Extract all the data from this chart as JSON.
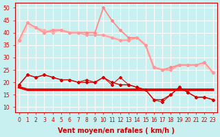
{
  "background_color": "#c8f0f0",
  "grid_color": "#ffffff",
  "xlabel": "Vent moyen/en rafales ( km/h )",
  "xlabel_color": "#cc0000",
  "xlabel_fontsize": 7,
  "xtick_fontsize": 5.5,
  "ytick_fontsize": 5.5,
  "ylim": [
    8,
    52
  ],
  "xlim": [
    -0.5,
    23.5
  ],
  "yticks": [
    10,
    15,
    20,
    25,
    30,
    35,
    40,
    45,
    50
  ],
  "xticks": [
    0,
    1,
    2,
    3,
    4,
    5,
    6,
    7,
    8,
    9,
    10,
    11,
    12,
    13,
    14,
    15,
    16,
    17,
    18,
    19,
    20,
    21,
    22,
    23
  ],
  "tick_color": "#cc0000",
  "series": [
    {
      "x": [
        0,
        1,
        2,
        3,
        4,
        5,
        6,
        7,
        8,
        9,
        10,
        11,
        12,
        13,
        14,
        15,
        16,
        17,
        18,
        19,
        20,
        21,
        22,
        23
      ],
      "y": [
        37,
        44,
        42,
        40,
        41,
        41,
        40,
        40,
        39,
        39,
        39,
        38,
        37,
        37,
        38,
        35,
        26,
        25,
        25,
        27,
        27,
        27,
        28,
        24
      ],
      "color": "#ff9999",
      "lw": 1.0,
      "marker": "D",
      "ms": 2.0,
      "zorder": 3
    },
    {
      "x": [
        0,
        1,
        2,
        3,
        4,
        5,
        6,
        7,
        8,
        9,
        10,
        11,
        12,
        13,
        14,
        15,
        16,
        17,
        18,
        19,
        20,
        21,
        22,
        23
      ],
      "y": [
        37,
        44,
        42,
        41,
        40,
        41,
        40,
        40,
        40,
        40,
        50,
        45,
        41,
        38,
        38,
        35,
        26,
        25,
        26,
        27,
        27,
        27,
        28,
        24
      ],
      "color": "#ffaaaa",
      "lw": 0.8,
      "marker": "D",
      "ms": 2.0,
      "zorder": 2
    },
    {
      "x": [
        0,
        1,
        2,
        3,
        4,
        5,
        6,
        7,
        8,
        9,
        10,
        11,
        12,
        13,
        14,
        15,
        16,
        17,
        18,
        19,
        20,
        21,
        22,
        23
      ],
      "y": [
        37,
        44,
        42,
        40,
        41,
        41,
        40,
        40,
        40,
        40,
        50,
        45,
        41,
        38,
        38,
        35,
        26,
        25,
        26,
        27,
        27,
        27,
        28,
        24
      ],
      "color": "#ff8888",
      "lw": 1.2,
      "marker": "D",
      "ms": 2.0,
      "zorder": 2
    },
    {
      "x": [
        0,
        1,
        2,
        3,
        4,
        5,
        6,
        7,
        8,
        9,
        10,
        11,
        12,
        13,
        14,
        15,
        16,
        17,
        18,
        19,
        20,
        21,
        22,
        23
      ],
      "y": [
        36,
        43,
        42,
        40,
        41,
        41,
        40,
        40,
        40,
        40,
        39,
        38,
        37,
        37,
        38,
        35,
        26,
        25,
        25,
        27,
        27,
        27,
        27,
        24
      ],
      "color": "#ffbbbb",
      "lw": 2.5,
      "marker": null,
      "ms": 0,
      "zorder": 1
    },
    {
      "x": [
        0,
        1,
        2,
        3,
        4,
        5,
        6,
        7,
        8,
        9,
        10,
        11,
        12,
        13,
        14,
        15,
        16,
        17,
        18,
        19,
        20,
        21,
        22,
        23
      ],
      "y": [
        36,
        43,
        42,
        40,
        41,
        41,
        40,
        40,
        40,
        40,
        39,
        38,
        37,
        37,
        38,
        35,
        26,
        25,
        25,
        27,
        27,
        27,
        27,
        24
      ],
      "color": "#ffcccc",
      "lw": 2.0,
      "marker": null,
      "ms": 0,
      "zorder": 1
    },
    {
      "x": [
        0,
        1,
        2,
        3,
        4,
        5,
        6,
        7,
        8,
        9,
        10,
        11,
        12,
        13,
        14,
        15,
        16,
        17,
        18,
        19,
        20,
        21,
        22,
        23
      ],
      "y": [
        19,
        23,
        22,
        23,
        22,
        21,
        21,
        20,
        20,
        20,
        22,
        20,
        19,
        19,
        18,
        17,
        13,
        13,
        15,
        18,
        16,
        14,
        14,
        13
      ],
      "color": "#cc0000",
      "lw": 1.0,
      "marker": "D",
      "ms": 2.0,
      "zorder": 4
    },
    {
      "x": [
        0,
        1,
        2,
        3,
        4,
        5,
        6,
        7,
        8,
        9,
        10,
        11,
        12,
        13,
        14,
        15,
        16,
        17,
        18,
        19,
        20,
        21,
        22,
        23
      ],
      "y": [
        19,
        23,
        22,
        23,
        22,
        21,
        21,
        20,
        21,
        20,
        22,
        19,
        22,
        19,
        18,
        17,
        13,
        12,
        15,
        18,
        16,
        14,
        14,
        13
      ],
      "color": "#dd0000",
      "lw": 0.8,
      "marker": "D",
      "ms": 2.0,
      "zorder": 4
    },
    {
      "x": [
        0,
        1,
        2,
        3,
        4,
        5,
        6,
        7,
        8,
        9,
        10,
        11,
        12,
        13,
        14,
        15,
        16,
        17,
        18,
        19,
        20,
        21,
        22,
        23
      ],
      "y": [
        18,
        17,
        17,
        17,
        17,
        17,
        17,
        17,
        17,
        17,
        17,
        17,
        17,
        17,
        17,
        17,
        17,
        17,
        17,
        17,
        17,
        17,
        17,
        17
      ],
      "color": "#cc0000",
      "lw": 2.5,
      "marker": null,
      "ms": 0,
      "zorder": 2
    },
    {
      "x": [
        0,
        1,
        2,
        3,
        4,
        5,
        6,
        7,
        8,
        9,
        10,
        11,
        12,
        13,
        14,
        15,
        16,
        17,
        18,
        19,
        20,
        21,
        22,
        23
      ],
      "y": [
        18,
        17,
        17,
        17,
        17,
        17,
        17,
        17,
        17,
        17,
        17,
        17,
        17,
        17,
        17,
        17,
        17,
        17,
        17,
        17,
        17,
        17,
        17,
        17
      ],
      "color": "#ee0000",
      "lw": 2.0,
      "marker": null,
      "ms": 0,
      "zorder": 2
    }
  ]
}
